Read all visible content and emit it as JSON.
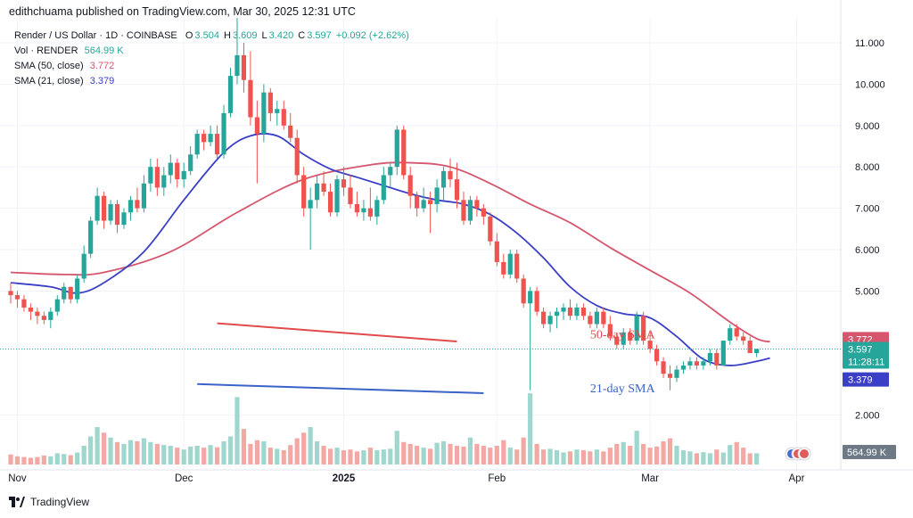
{
  "header": {
    "publisher_line": "edithchuama published on TradingView.com, Mar 30, 2025 12:31 UTC"
  },
  "legend": {
    "symbol": "Render / US Dollar · 1D · COINBASE",
    "ohlc": {
      "o_label": "O",
      "o": "3.504",
      "h_label": "H",
      "h": "3.609",
      "l_label": "L",
      "l": "3.420",
      "c_label": "C",
      "c": "3.597",
      "change": "+0.092 (+2.62%)"
    },
    "vol_label": "Vol · RENDER",
    "vol_value": "564.99 K",
    "sma50_label": "SMA (50, close)",
    "sma50_value": "3.772",
    "sma21_label": "SMA (21, close)",
    "sma21_value": "3.379"
  },
  "footer": {
    "brand": "TradingView"
  },
  "colors": {
    "up": "#26a69a",
    "down": "#ef5350",
    "vol_up": "#9fd6ce",
    "vol_down": "#f4a8a4",
    "sma50": "#d6566e",
    "sma21": "#3a3fc6",
    "annot_red": "#e04a4a",
    "annot_blue": "#3a63c8",
    "grid": "#f0f3fa",
    "axis_text": "#131722"
  },
  "chart_data": {
    "type": "candlestick",
    "price_axis": {
      "ticks": [
        "11.000",
        "10.000",
        "9.000",
        "8.000",
        "7.000",
        "6.000",
        "5.000",
        "2.000"
      ],
      "tick_values": [
        11,
        10,
        9,
        8,
        7,
        6,
        5,
        2
      ]
    },
    "time_axis": {
      "labels": [
        "Nov",
        "Dec",
        "2025",
        "Feb",
        "Mar",
        "Apr"
      ]
    },
    "price_labels": [
      {
        "value": 3.772,
        "text": "3.772",
        "kind": "sma50"
      },
      {
        "value": 3.597,
        "text": "3.597",
        "sub": "11:28:11",
        "kind": "last"
      },
      {
        "value": 3.379,
        "text": "3.379",
        "kind": "sma21"
      }
    ],
    "volume_label": "564.99 K",
    "annotations": [
      {
        "text": "50-day SMA",
        "kind": "sma50",
        "line": [
          [
            31,
            4.22
          ],
          [
            67,
            3.78
          ]
        ],
        "text_at": [
          87,
          3.86
        ]
      },
      {
        "text": "21-day SMA",
        "kind": "sma21",
        "line": [
          [
            28,
            2.75
          ],
          [
            71,
            2.53
          ]
        ],
        "text_at": [
          87,
          2.55
        ]
      }
    ],
    "candles": [
      [
        5.0,
        5.2,
        4.7,
        4.9
      ],
      [
        4.9,
        5.0,
        4.6,
        4.8
      ],
      [
        4.8,
        4.9,
        4.5,
        4.6
      ],
      [
        4.6,
        4.7,
        4.3,
        4.5
      ],
      [
        4.5,
        4.6,
        4.2,
        4.4
      ],
      [
        4.4,
        4.5,
        4.2,
        4.3
      ],
      [
        4.3,
        4.6,
        4.1,
        4.5
      ],
      [
        4.5,
        4.9,
        4.4,
        4.8
      ],
      [
        4.8,
        5.2,
        4.7,
        5.1
      ],
      [
        5.1,
        5.1,
        4.7,
        4.8
      ],
      [
        4.8,
        5.4,
        4.7,
        5.3
      ],
      [
        5.3,
        6.1,
        5.2,
        5.9
      ],
      [
        5.9,
        6.8,
        5.8,
        6.7
      ],
      [
        6.7,
        7.5,
        6.6,
        7.3
      ],
      [
        7.3,
        7.4,
        6.5,
        6.7
      ],
      [
        6.7,
        7.2,
        6.6,
        7.1
      ],
      [
        7.1,
        7.2,
        6.4,
        6.6
      ],
      [
        6.6,
        7.0,
        6.5,
        6.9
      ],
      [
        6.9,
        7.3,
        6.7,
        7.2
      ],
      [
        7.2,
        7.5,
        6.9,
        7.0
      ],
      [
        7.0,
        7.8,
        6.9,
        7.6
      ],
      [
        7.6,
        8.2,
        7.4,
        8.0
      ],
      [
        8.0,
        8.2,
        7.3,
        7.5
      ],
      [
        7.5,
        8.0,
        7.3,
        7.8
      ],
      [
        7.8,
        8.3,
        7.6,
        8.1
      ],
      [
        8.1,
        8.2,
        7.5,
        7.7
      ],
      [
        7.7,
        8.1,
        7.5,
        7.9
      ],
      [
        7.9,
        8.5,
        7.8,
        8.3
      ],
      [
        8.3,
        8.9,
        8.2,
        8.8
      ],
      [
        8.8,
        8.9,
        8.4,
        8.6
      ],
      [
        8.6,
        9.0,
        8.5,
        8.8
      ],
      [
        8.8,
        9.0,
        8.2,
        8.3
      ],
      [
        8.3,
        9.5,
        8.2,
        9.3
      ],
      [
        9.3,
        10.4,
        9.2,
        10.2
      ],
      [
        10.2,
        11.6,
        10.0,
        10.7
      ],
      [
        10.7,
        11.0,
        9.8,
        10.1
      ],
      [
        10.1,
        10.8,
        9.0,
        9.2
      ],
      [
        9.2,
        9.6,
        7.6,
        8.8
      ],
      [
        8.8,
        10.0,
        8.6,
        9.8
      ],
      [
        9.8,
        9.9,
        9.1,
        9.3
      ],
      [
        9.3,
        9.6,
        9.0,
        9.4
      ],
      [
        9.4,
        9.6,
        8.9,
        9.0
      ],
      [
        9.0,
        9.3,
        8.6,
        8.7
      ],
      [
        8.7,
        8.9,
        7.6,
        7.8
      ],
      [
        7.8,
        8.0,
        6.8,
        7.0
      ],
      [
        7.0,
        7.5,
        6.0,
        7.2
      ],
      [
        7.2,
        7.8,
        7.0,
        7.6
      ],
      [
        7.6,
        7.9,
        7.3,
        7.4
      ],
      [
        7.4,
        7.6,
        6.8,
        6.9
      ],
      [
        6.9,
        7.8,
        6.8,
        7.7
      ],
      [
        7.7,
        8.0,
        7.3,
        7.5
      ],
      [
        7.5,
        7.8,
        7.0,
        7.1
      ],
      [
        7.1,
        7.4,
        6.8,
        6.9
      ],
      [
        6.9,
        7.2,
        6.7,
        7.0
      ],
      [
        7.0,
        7.5,
        6.7,
        6.8
      ],
      [
        6.8,
        7.3,
        6.6,
        7.2
      ],
      [
        7.2,
        8.0,
        7.1,
        7.8
      ],
      [
        7.8,
        8.1,
        7.5,
        8.0
      ],
      [
        8.0,
        9.0,
        7.8,
        8.9
      ],
      [
        8.9,
        9.0,
        7.7,
        7.8
      ],
      [
        7.8,
        8.0,
        7.0,
        7.3
      ],
      [
        7.3,
        7.4,
        6.8,
        7.0
      ],
      [
        7.0,
        7.5,
        6.9,
        7.2
      ],
      [
        7.2,
        7.4,
        6.4,
        7.1
      ],
      [
        7.1,
        7.7,
        6.9,
        7.5
      ],
      [
        7.5,
        8.0,
        7.2,
        7.9
      ],
      [
        7.9,
        8.2,
        7.5,
        7.7
      ],
      [
        7.7,
        8.1,
        7.0,
        7.2
      ],
      [
        7.2,
        7.4,
        6.6,
        6.7
      ],
      [
        6.7,
        7.3,
        6.6,
        7.2
      ],
      [
        7.2,
        7.3,
        6.8,
        7.0
      ],
      [
        7.0,
        7.1,
        6.6,
        6.8
      ],
      [
        6.8,
        6.9,
        6.1,
        6.2
      ],
      [
        6.2,
        6.4,
        5.6,
        5.7
      ],
      [
        5.7,
        5.9,
        5.3,
        5.4
      ],
      [
        5.4,
        6.0,
        5.3,
        5.9
      ],
      [
        5.9,
        6.0,
        5.2,
        5.3
      ],
      [
        5.3,
        5.4,
        4.6,
        4.7
      ],
      [
        4.7,
        5.1,
        2.6,
        5.0
      ],
      [
        5.0,
        5.1,
        4.4,
        4.5
      ],
      [
        4.5,
        4.6,
        4.1,
        4.2
      ],
      [
        4.2,
        4.5,
        4.0,
        4.4
      ],
      [
        4.4,
        4.6,
        4.1,
        4.5
      ],
      [
        4.5,
        4.7,
        4.3,
        4.6
      ],
      [
        4.6,
        4.8,
        4.3,
        4.4
      ],
      [
        4.4,
        4.7,
        4.3,
        4.6
      ],
      [
        4.6,
        4.7,
        4.3,
        4.4
      ],
      [
        4.4,
        4.5,
        4.1,
        4.2
      ],
      [
        4.2,
        4.6,
        4.1,
        4.5
      ],
      [
        4.5,
        4.6,
        4.1,
        4.2
      ],
      [
        4.2,
        4.4,
        3.8,
        3.9
      ],
      [
        3.9,
        4.0,
        3.6,
        3.7
      ],
      [
        3.7,
        4.1,
        3.6,
        4.0
      ],
      [
        4.0,
        4.1,
        3.7,
        3.8
      ],
      [
        3.8,
        4.5,
        3.7,
        4.4
      ],
      [
        4.4,
        4.5,
        3.7,
        3.8
      ],
      [
        3.8,
        4.0,
        3.5,
        3.6
      ],
      [
        3.6,
        3.7,
        3.2,
        3.3
      ],
      [
        3.3,
        3.4,
        2.9,
        3.0
      ],
      [
        3.0,
        3.2,
        2.6,
        2.9
      ],
      [
        2.9,
        3.2,
        2.8,
        3.1
      ],
      [
        3.1,
        3.3,
        3.0,
        3.2
      ],
      [
        3.2,
        3.4,
        3.1,
        3.3
      ],
      [
        3.3,
        3.4,
        3.1,
        3.2
      ],
      [
        3.2,
        3.4,
        3.1,
        3.3
      ],
      [
        3.3,
        3.6,
        3.2,
        3.5
      ],
      [
        3.5,
        3.6,
        3.1,
        3.2
      ],
      [
        3.2,
        3.8,
        3.2,
        3.8
      ],
      [
        3.8,
        4.2,
        3.7,
        4.1
      ],
      [
        4.1,
        4.2,
        3.8,
        3.9
      ],
      [
        3.9,
        4.0,
        3.7,
        3.8
      ],
      [
        3.8,
        3.9,
        3.5,
        3.5
      ],
      [
        3.5,
        3.6,
        3.4,
        3.6
      ]
    ],
    "volumes": [
      0.27,
      0.22,
      0.2,
      0.18,
      0.2,
      0.24,
      0.22,
      0.3,
      0.28,
      0.25,
      0.32,
      0.5,
      0.75,
      1.0,
      0.85,
      0.72,
      0.6,
      0.55,
      0.65,
      0.62,
      0.7,
      0.6,
      0.55,
      0.52,
      0.5,
      0.45,
      0.4,
      0.48,
      0.5,
      0.45,
      0.52,
      0.46,
      0.62,
      0.75,
      1.8,
      0.95,
      0.55,
      0.65,
      0.62,
      0.45,
      0.42,
      0.38,
      0.52,
      0.7,
      0.85,
      1.0,
      0.62,
      0.5,
      0.42,
      0.45,
      0.38,
      0.4,
      0.35,
      0.38,
      0.45,
      0.38,
      0.4,
      0.42,
      0.9,
      0.6,
      0.55,
      0.5,
      0.45,
      0.42,
      0.58,
      0.62,
      0.55,
      0.5,
      0.48,
      0.72,
      0.55,
      0.5,
      0.45,
      0.5,
      0.65,
      0.45,
      0.4,
      0.72,
      1.9,
      0.55,
      0.4,
      0.42,
      0.38,
      0.32,
      0.35,
      0.4,
      0.38,
      0.35,
      0.4,
      0.35,
      0.45,
      0.55,
      0.6,
      0.5,
      0.9,
      0.55,
      0.45,
      0.48,
      0.62,
      0.7,
      0.5,
      0.38,
      0.35,
      0.3,
      0.33,
      0.3,
      0.4,
      0.32,
      0.52,
      0.6,
      0.45,
      0.3,
      0.3
    ],
    "sma50": [
      [
        0,
        5.45
      ],
      [
        8,
        5.4
      ],
      [
        14,
        5.45
      ],
      [
        24,
        5.95
      ],
      [
        34,
        6.9
      ],
      [
        44,
        7.7
      ],
      [
        54,
        8.05
      ],
      [
        60,
        8.1
      ],
      [
        66,
        8.0
      ],
      [
        72,
        7.6
      ],
      [
        78,
        7.1
      ],
      [
        84,
        6.65
      ],
      [
        90,
        6.05
      ],
      [
        96,
        5.5
      ],
      [
        102,
        4.95
      ],
      [
        108,
        4.25
      ],
      [
        112,
        3.85
      ],
      [
        114,
        3.772
      ]
    ],
    "sma21": [
      [
        0,
        5.2
      ],
      [
        6,
        5.1
      ],
      [
        10,
        4.95
      ],
      [
        14,
        5.2
      ],
      [
        20,
        5.95
      ],
      [
        26,
        7.2
      ],
      [
        32,
        8.35
      ],
      [
        36,
        8.75
      ],
      [
        40,
        8.75
      ],
      [
        44,
        8.3
      ],
      [
        48,
        7.95
      ],
      [
        52,
        7.75
      ],
      [
        56,
        7.55
      ],
      [
        60,
        7.35
      ],
      [
        64,
        7.2
      ],
      [
        68,
        7.1
      ],
      [
        72,
        6.85
      ],
      [
        76,
        6.4
      ],
      [
        80,
        5.8
      ],
      [
        84,
        5.1
      ],
      [
        88,
        4.65
      ],
      [
        92,
        4.45
      ],
      [
        96,
        4.35
      ],
      [
        100,
        3.9
      ],
      [
        104,
        3.35
      ],
      [
        108,
        3.2
      ],
      [
        112,
        3.3
      ],
      [
        114,
        3.379
      ]
    ]
  }
}
